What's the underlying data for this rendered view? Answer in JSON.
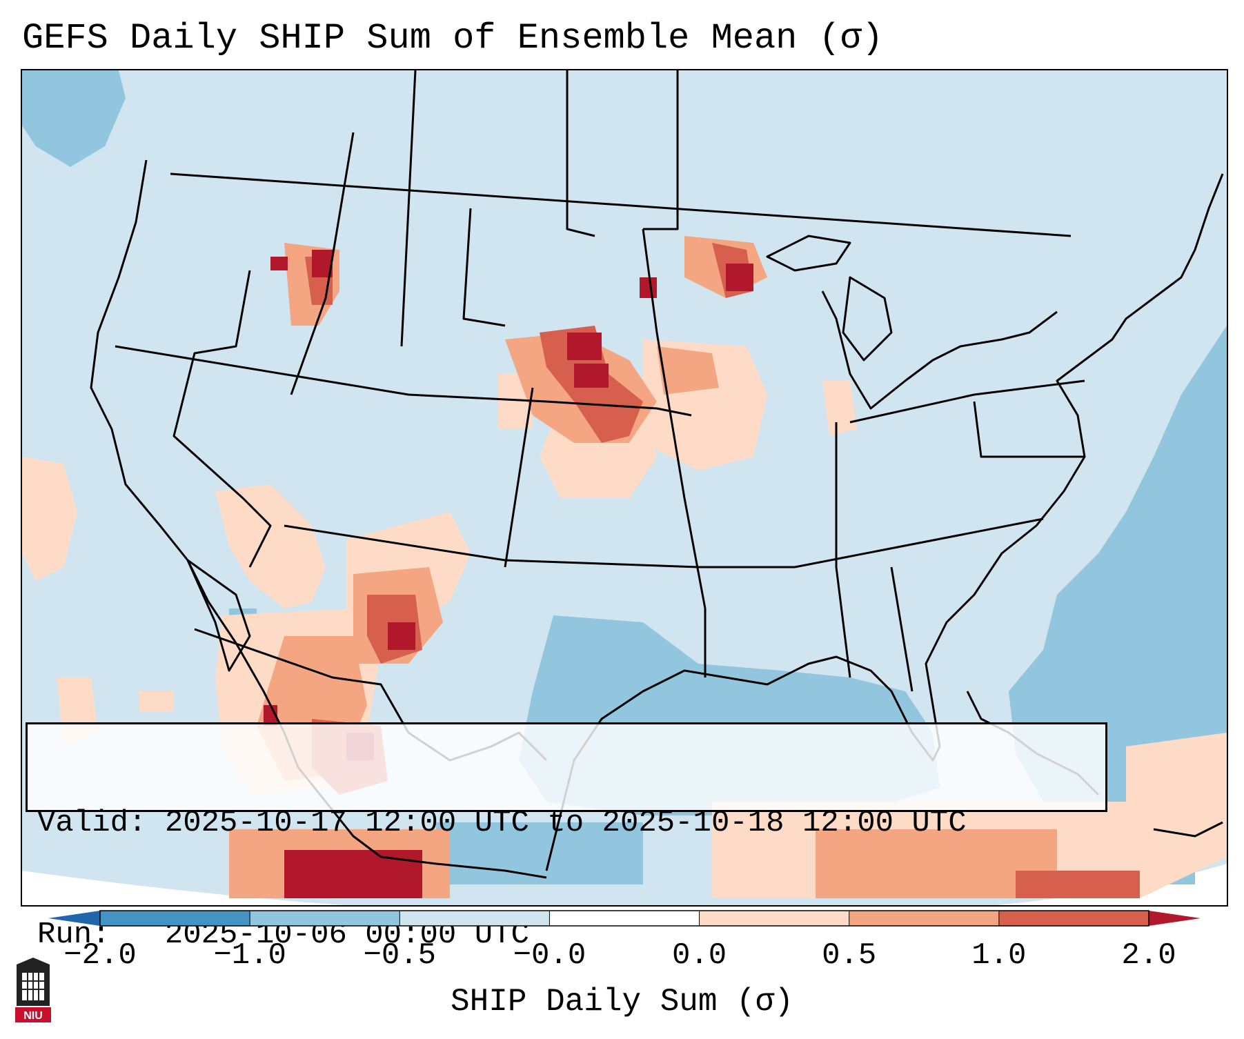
{
  "title": "GEFS Daily SHIP Sum of Ensemble Mean (σ)",
  "info": {
    "valid_line": "Valid: 2025-10-17 12:00 UTC to 2025-10-18 12:00 UTC",
    "run_line": "Run:   2025-10-06 00:00 UTC"
  },
  "colorbar": {
    "label": "SHIP Daily Sum (σ)",
    "ticks": [
      "−2.0",
      "−1.0",
      "−0.5",
      "−0.0",
      "0.0",
      "0.5",
      "1.0",
      "2.0"
    ],
    "colors": [
      "#2166ac",
      "#4393c3",
      "#92c5de",
      "#d1e5f0",
      "#ffffff",
      "#fddbc7",
      "#f4a582",
      "#d6604d",
      "#b2182b"
    ],
    "extend": "both"
  },
  "logo": {
    "text": "NIU"
  }
}
